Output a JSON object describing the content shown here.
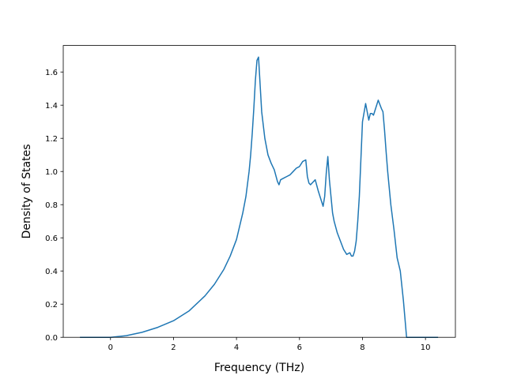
{
  "chart_data": {
    "type": "line",
    "title": "",
    "xlabel": "Frequency (THz)",
    "ylabel": "Density of States",
    "xlim": [
      -1.5,
      10.95
    ],
    "ylim": [
      0.0,
      1.76
    ],
    "grid": false,
    "xticks": [
      0,
      2,
      4,
      6,
      8,
      10
    ],
    "yticks": [
      0.0,
      0.2,
      0.4,
      0.6,
      0.8,
      1.0,
      1.2,
      1.4,
      1.6
    ],
    "xtick_labels": [
      "0",
      "2",
      "4",
      "6",
      "8",
      "10"
    ],
    "ytick_labels": [
      "0.0",
      "0.2",
      "0.4",
      "0.6",
      "0.8",
      "1.0",
      "1.2",
      "1.4",
      "1.6"
    ],
    "series": [
      {
        "color": "#1f77b4",
        "x": [
          -0.97,
          -0.5,
          0.0,
          0.5,
          1.0,
          1.5,
          2.0,
          2.5,
          3.0,
          3.3,
          3.6,
          3.8,
          4.0,
          4.2,
          4.3,
          4.4,
          4.45,
          4.5,
          4.55,
          4.6,
          4.65,
          4.7,
          4.8,
          4.9,
          5.0,
          5.1,
          5.2,
          5.3,
          5.35,
          5.4,
          5.5,
          5.6,
          5.7,
          5.8,
          5.9,
          6.0,
          6.1,
          6.2,
          6.25,
          6.3,
          6.35,
          6.4,
          6.5,
          6.6,
          6.7,
          6.75,
          6.8,
          6.85,
          6.9,
          6.95,
          7.0,
          7.05,
          7.1,
          7.2,
          7.3,
          7.4,
          7.5,
          7.6,
          7.65,
          7.7,
          7.75,
          7.8,
          7.85,
          7.9,
          8.0,
          8.1,
          8.2,
          8.25,
          8.3,
          8.35,
          8.4,
          8.5,
          8.6,
          8.65,
          8.7,
          8.75,
          8.8,
          8.9,
          9.0,
          9.1,
          9.2,
          9.3,
          9.4,
          9.45,
          9.5,
          10.0,
          10.4
        ],
        "y": [
          0.0,
          0.0,
          0.0,
          0.01,
          0.03,
          0.06,
          0.1,
          0.16,
          0.25,
          0.32,
          0.41,
          0.49,
          0.59,
          0.75,
          0.85,
          1.0,
          1.1,
          1.23,
          1.38,
          1.55,
          1.67,
          1.69,
          1.36,
          1.2,
          1.1,
          1.05,
          1.01,
          0.94,
          0.92,
          0.95,
          0.96,
          0.97,
          0.98,
          1.0,
          1.02,
          1.03,
          1.06,
          1.07,
          0.97,
          0.93,
          0.92,
          0.93,
          0.95,
          0.88,
          0.82,
          0.79,
          0.85,
          0.99,
          1.09,
          0.95,
          0.85,
          0.75,
          0.7,
          0.63,
          0.58,
          0.53,
          0.5,
          0.51,
          0.49,
          0.49,
          0.52,
          0.58,
          0.7,
          0.85,
          1.3,
          1.41,
          1.31,
          1.35,
          1.35,
          1.34,
          1.37,
          1.43,
          1.38,
          1.36,
          1.25,
          1.12,
          1.0,
          0.8,
          0.65,
          0.48,
          0.4,
          0.22,
          0.0,
          0.0,
          0.0,
          0.0,
          0.0
        ]
      }
    ]
  }
}
